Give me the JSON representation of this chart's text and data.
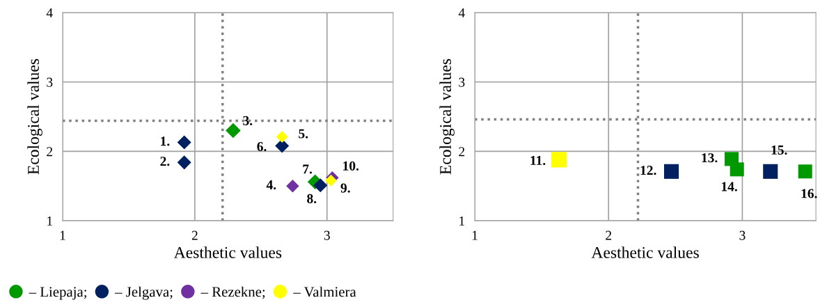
{
  "chart_data": [
    {
      "type": "scatter",
      "xlabel": "Aesthetic values",
      "ylabel": "Ecological values",
      "xlim": [
        1,
        3.5
      ],
      "ylim": [
        1,
        4
      ],
      "xticks": [
        1,
        2,
        3
      ],
      "yticks": [
        1,
        2,
        3,
        4
      ],
      "grid": true,
      "marker": "diamond",
      "legend": "bottom",
      "series": [
        {
          "name": "– Liepaja;",
          "color": "#009900",
          "x": [
            2.29,
            2.91
          ],
          "values": [
            2.3,
            1.56
          ]
        },
        {
          "name": "– Jelgava;",
          "color": "#002060",
          "x": [
            1.92,
            1.92,
            2.66,
            2.95
          ],
          "values": [
            2.13,
            1.84,
            2.08,
            1.51
          ]
        },
        {
          "name": "– Rezekne;",
          "color": "#7030a0",
          "x": [
            2.74,
            3.04
          ],
          "values": [
            1.5,
            1.62
          ]
        },
        {
          "name": "– Valmiera",
          "color": "#ffff00",
          "x": [
            2.66,
            3.03
          ],
          "values": [
            2.21,
            1.58
          ]
        }
      ],
      "ref_lines": [
        {
          "axis": "x",
          "value": 2.21,
          "color": "#808080",
          "line_style": "dotted"
        },
        {
          "axis": "y",
          "value": 2.44,
          "color": "#808080",
          "line_style": "dotted"
        }
      ],
      "annotations": [
        {
          "text": "1.",
          "x": 1.92,
          "y": 2.13
        },
        {
          "text": "2.",
          "x": 1.92,
          "y": 1.84
        },
        {
          "text": "3.",
          "x": 2.29,
          "y": 2.3
        },
        {
          "text": "4.",
          "x": 2.74,
          "y": 1.5
        },
        {
          "text": "5.",
          "x": 2.66,
          "y": 2.21
        },
        {
          "text": "6.",
          "x": 2.66,
          "y": 2.08
        },
        {
          "text": "7.",
          "x": 2.91,
          "y": 1.56
        },
        {
          "text": "8.",
          "x": 2.95,
          "y": 1.51
        },
        {
          "text": "9.",
          "x": 3.03,
          "y": 1.58
        },
        {
          "text": "10.",
          "x": 3.04,
          "y": 1.62
        }
      ]
    },
    {
      "type": "scatter",
      "xlabel": "Aesthetic values",
      "ylabel": "Ecological values",
      "xlim": [
        1,
        3.55
      ],
      "ylim": [
        1,
        4
      ],
      "xticks": [
        1,
        2,
        3
      ],
      "yticks": [
        1,
        2,
        3,
        4
      ],
      "grid": true,
      "marker": "square",
      "series": [
        {
          "color": "#ffff00",
          "x": [
            1.63
          ],
          "values": [
            1.88
          ]
        },
        {
          "color": "#002060",
          "x": [
            2.47,
            3.21
          ],
          "values": [
            1.71,
            1.71
          ]
        },
        {
          "color": "#009900",
          "x": [
            2.92,
            2.96,
            3.47
          ],
          "values": [
            1.89,
            1.74,
            1.71
          ]
        }
      ],
      "ref_lines": [
        {
          "axis": "x",
          "value": 2.22,
          "color": "#808080",
          "line_style": "dotted"
        },
        {
          "axis": "y",
          "value": 2.46,
          "color": "#808080",
          "line_style": "dotted"
        }
      ],
      "annotations": [
        {
          "text": "11.",
          "x": 1.63,
          "y": 1.88
        },
        {
          "text": "12.",
          "x": 2.47,
          "y": 1.71
        },
        {
          "text": "13.",
          "x": 2.92,
          "y": 1.89
        },
        {
          "text": "14.",
          "x": 2.96,
          "y": 1.74
        },
        {
          "text": "15.",
          "x": 3.21,
          "y": 1.71
        },
        {
          "text": "16.",
          "x": 3.47,
          "y": 1.71
        }
      ]
    }
  ]
}
